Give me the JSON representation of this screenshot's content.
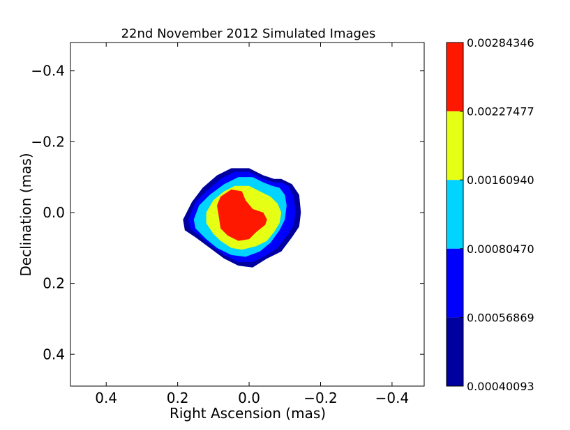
{
  "chart_data": {
    "type": "contourf",
    "title": "22nd November 2012 Simulated Images",
    "xlabel": "Right Ascension (mas)",
    "ylabel": "Declination (mas)",
    "xlim": [
      0.5,
      -0.49
    ],
    "ylim": [
      -0.48,
      0.49
    ],
    "xticks": [
      0.4,
      0.2,
      0.0,
      -0.2,
      -0.4
    ],
    "xtick_labels": [
      "0.4",
      "0.2",
      "0.0",
      "−0.2",
      "−0.4"
    ],
    "yticks": [
      -0.4,
      -0.2,
      0.0,
      0.2,
      0.4
    ],
    "ytick_labels": [
      "−0.4",
      "−0.2",
      "0.0",
      "0.2",
      "0.4"
    ],
    "grid": false,
    "contour_levels": [
      {
        "min": 0.00040093,
        "max": 0.00056869,
        "color": "#00009e"
      },
      {
        "min": 0.00056869,
        "max": 0.0008047,
        "color": "#0000ff"
      },
      {
        "min": 0.0008047,
        "max": 0.0016094,
        "color": "#00d4ff"
      },
      {
        "min": 0.0016094,
        "max": 0.00227477,
        "color": "#e5ff15"
      },
      {
        "min": 0.00227477,
        "max": 0.00284346,
        "color": "#ff1800"
      }
    ],
    "region_outlines": [
      {
        "level": 0,
        "x": [
          0.185,
          0.16,
          0.13,
          0.09,
          0.05,
          0.0,
          -0.04,
          -0.07,
          -0.09,
          -0.12,
          -0.14,
          -0.145,
          -0.14,
          -0.12,
          -0.09,
          -0.05,
          -0.01,
          0.03,
          0.07,
          0.11,
          0.15,
          0.18,
          0.185
        ],
        "y": [
          0.02,
          -0.03,
          -0.07,
          -0.105,
          -0.125,
          -0.125,
          -0.105,
          -0.095,
          -0.095,
          -0.08,
          -0.05,
          0.0,
          0.04,
          0.07,
          0.11,
          0.13,
          0.155,
          0.15,
          0.13,
          0.1,
          0.07,
          0.05,
          0.02
        ]
      },
      {
        "level": 1,
        "x": [
          0.17,
          0.15,
          0.12,
          0.08,
          0.04,
          0.0,
          -0.04,
          -0.07,
          -0.09,
          -0.11,
          -0.125,
          -0.13,
          -0.125,
          -0.11,
          -0.08,
          -0.05,
          -0.01,
          0.03,
          0.07,
          0.11,
          0.14,
          0.165,
          0.17
        ],
        "y": [
          0.02,
          -0.03,
          -0.06,
          -0.095,
          -0.115,
          -0.115,
          -0.095,
          -0.085,
          -0.085,
          -0.075,
          -0.045,
          0.0,
          0.035,
          0.06,
          0.1,
          0.12,
          0.14,
          0.14,
          0.12,
          0.09,
          0.065,
          0.045,
          0.02
        ]
      },
      {
        "level": 2,
        "x": [
          0.155,
          0.14,
          0.11,
          0.07,
          0.03,
          -0.01,
          -0.04,
          -0.065,
          -0.085,
          -0.1,
          -0.105,
          -0.1,
          -0.085,
          -0.06,
          -0.03,
          0.01,
          0.05,
          0.09,
          0.12,
          0.15,
          0.155
        ],
        "y": [
          0.02,
          -0.02,
          -0.05,
          -0.08,
          -0.1,
          -0.1,
          -0.085,
          -0.075,
          -0.07,
          -0.05,
          -0.02,
          0.02,
          0.05,
          0.085,
          0.11,
          0.125,
          0.12,
          0.1,
          0.075,
          0.045,
          0.02
        ]
      },
      {
        "level": 3,
        "x": [
          0.12,
          0.1,
          0.07,
          0.04,
          0.0,
          -0.03,
          -0.06,
          -0.08,
          -0.09,
          -0.085,
          -0.07,
          -0.05,
          -0.02,
          0.02,
          0.05,
          0.08,
          0.1,
          0.12,
          0.12
        ],
        "y": [
          0.0,
          -0.035,
          -0.06,
          -0.075,
          -0.075,
          -0.06,
          -0.045,
          -0.025,
          0.0,
          0.03,
          0.055,
          0.08,
          0.095,
          0.105,
          0.1,
          0.08,
          0.06,
          0.03,
          0.0
        ]
      },
      {
        "level": 4,
        "x": [
          0.09,
          0.08,
          0.05,
          0.02,
          0.01,
          -0.01,
          -0.04,
          -0.05,
          -0.045,
          -0.02,
          0.0,
          0.03,
          0.06,
          0.08,
          0.085,
          0.09
        ],
        "y": [
          -0.02,
          -0.045,
          -0.065,
          -0.06,
          -0.035,
          -0.01,
          0.0,
          0.02,
          0.035,
          0.055,
          0.075,
          0.08,
          0.065,
          0.045,
          0.01,
          -0.02
        ]
      }
    ],
    "colorbar": {
      "tick_labels": [
        "0.00284346",
        "0.00227477",
        "0.00160940",
        "0.00080470",
        "0.00056869",
        "0.00040093"
      ]
    }
  }
}
